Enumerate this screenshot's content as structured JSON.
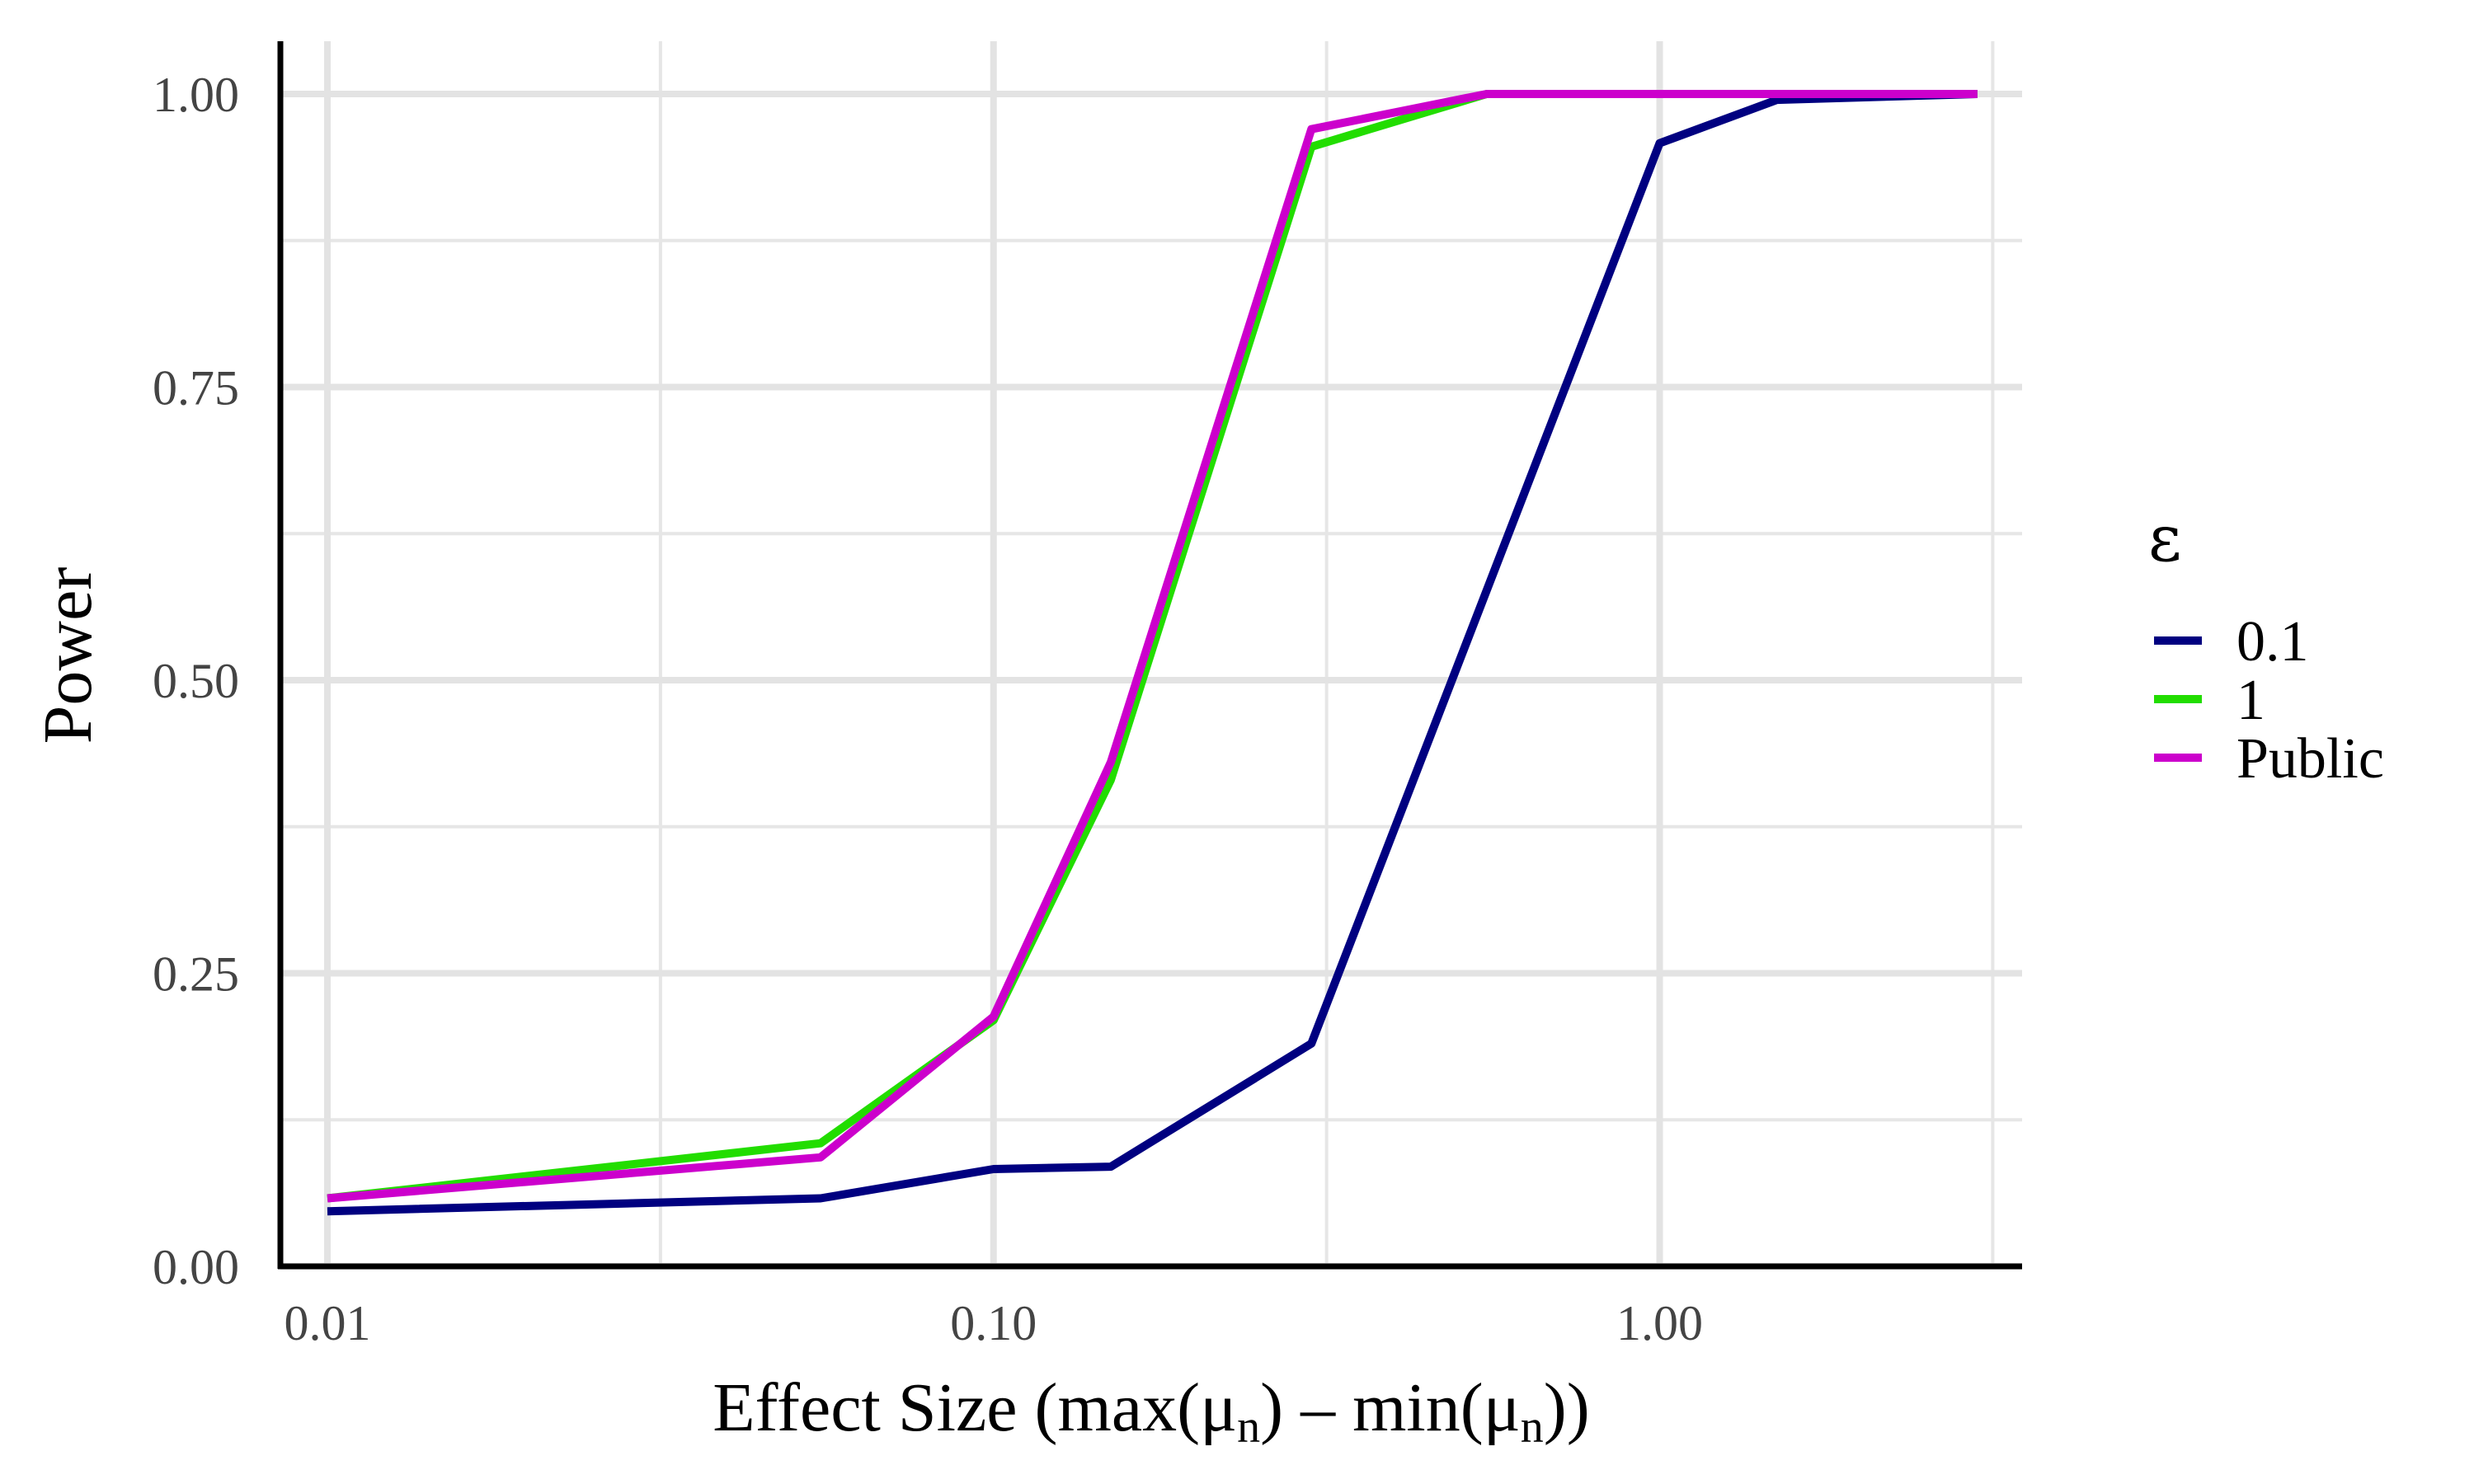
{
  "chart_data": {
    "type": "line",
    "xlabel": "Effect Size (max(μ",
    "xlabel_parts": [
      "Effect Size (max(μ",
      "n",
      ") – min(μ",
      "n",
      "))"
    ],
    "ylabel": "Power",
    "x_scale": "log10",
    "xlim": [
      0.0085,
      3.5
    ],
    "ylim": [
      0,
      1.045
    ],
    "x_ticks": [
      0.01,
      0.1,
      1.0
    ],
    "x_tick_labels": [
      "0.01",
      "0.10",
      "1.00"
    ],
    "y_ticks": [
      0,
      0.25,
      0.5,
      0.75,
      1.0
    ],
    "y_tick_labels": [
      "0.00",
      "0.25",
      "0.50",
      "0.75",
      "1.00"
    ],
    "grid": true,
    "legend": {
      "title": "ε",
      "position": "right"
    },
    "series": [
      {
        "name": "0.1",
        "color": "#000080",
        "x": [
          0.01,
          0.055,
          0.1,
          0.15,
          0.3,
          1.0,
          1.5,
          3.0
        ],
        "y": [
          0.047,
          0.058,
          0.083,
          0.085,
          0.19,
          0.958,
          0.995,
          1.0
        ]
      },
      {
        "name": "1",
        "color": "#22DD00",
        "x": [
          0.01,
          0.055,
          0.1,
          0.15,
          0.3,
          0.55,
          1.0,
          1.5,
          3.0
        ],
        "y": [
          0.058,
          0.105,
          0.21,
          0.415,
          0.955,
          1.0,
          1.0,
          1.0,
          1.0
        ]
      },
      {
        "name": "Public",
        "color": "#CC00CC",
        "x": [
          0.01,
          0.055,
          0.1,
          0.15,
          0.3,
          0.55,
          1.0,
          1.5,
          3.0
        ],
        "y": [
          0.058,
          0.093,
          0.213,
          0.43,
          0.97,
          1.0,
          1.0,
          1.0,
          1.0
        ]
      }
    ]
  }
}
